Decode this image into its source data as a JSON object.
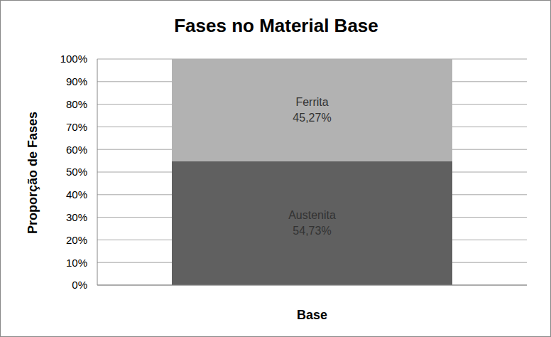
{
  "chart_data": {
    "type": "bar",
    "title": "Fases no Material Base",
    "y_label": "Proporção de Fases",
    "categories": [
      "Base"
    ],
    "series": [
      {
        "name": "Austenita",
        "color": "#606060",
        "values": [
          54.73
        ],
        "value_labels": [
          "54,73%"
        ]
      },
      {
        "name": "Ferrita",
        "color": "#b2b2b2",
        "values": [
          45.27
        ],
        "value_labels": [
          "45,27%"
        ]
      }
    ],
    "ylim": [
      0,
      100
    ],
    "yticks": [
      {
        "value": 0,
        "label": "0%"
      },
      {
        "value": 10,
        "label": "10%"
      },
      {
        "value": 20,
        "label": "20%"
      },
      {
        "value": 30,
        "label": "30%"
      },
      {
        "value": 40,
        "label": "40%"
      },
      {
        "value": 50,
        "label": "50%"
      },
      {
        "value": 60,
        "label": "60%"
      },
      {
        "value": 70,
        "label": "70%"
      },
      {
        "value": 80,
        "label": "80%"
      },
      {
        "value": 90,
        "label": "90%"
      },
      {
        "value": 100,
        "label": "100%"
      }
    ],
    "grid": true,
    "stacked": true,
    "data_labels": true
  }
}
